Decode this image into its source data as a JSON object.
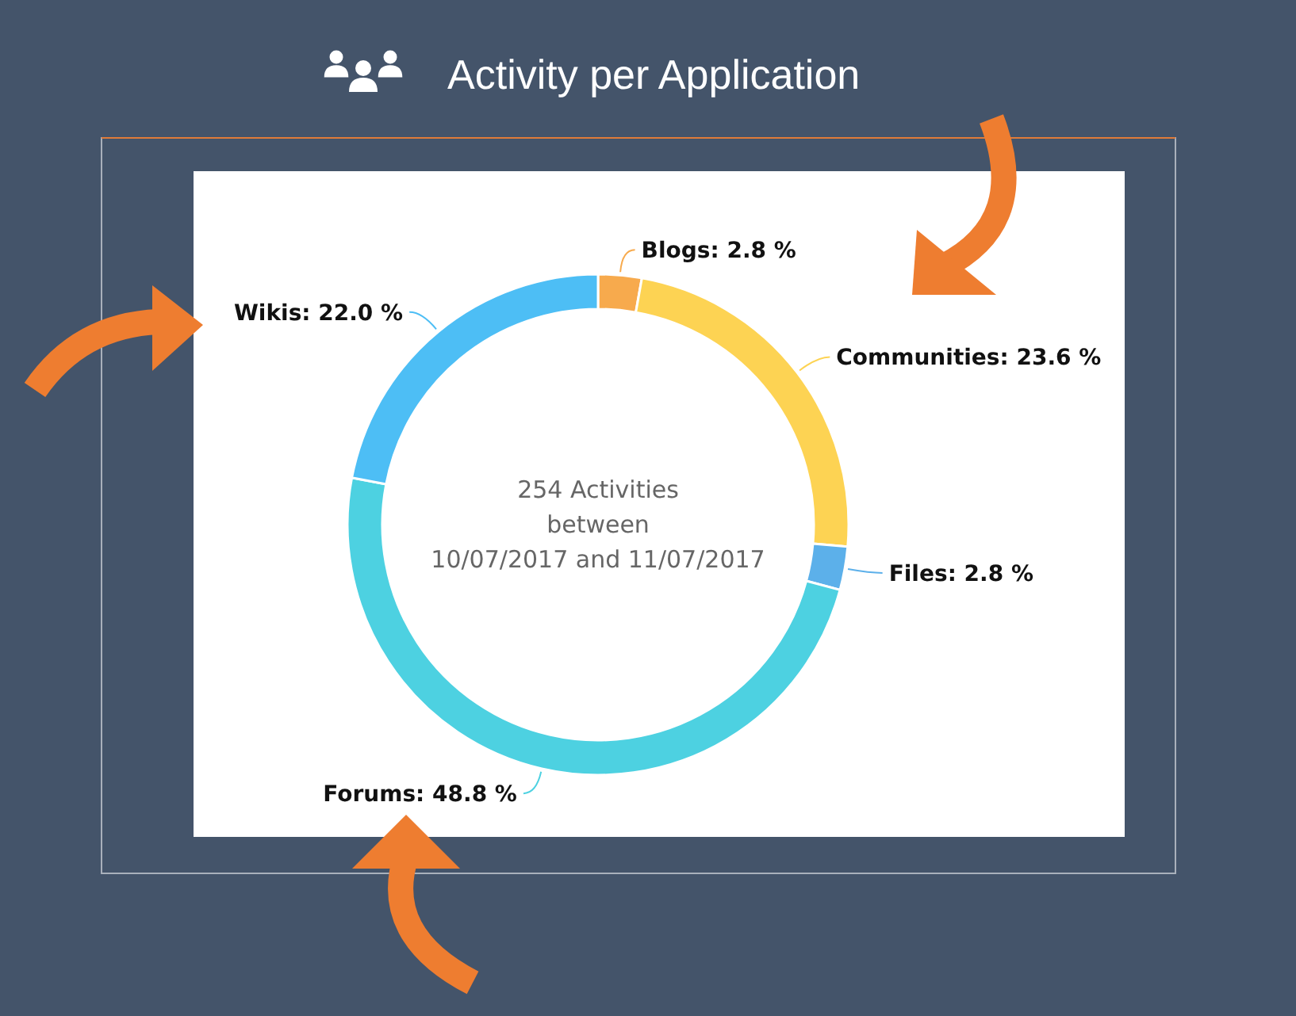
{
  "chart_data": {
    "type": "donut",
    "title": "Activity per Application",
    "categories": [
      "Blogs",
      "Communities",
      "Files",
      "Forums",
      "Wikis"
    ],
    "values": [
      2.8,
      23.6,
      2.8,
      48.8,
      22.0
    ],
    "colors": [
      "#f7aa4d",
      "#fdd353",
      "#5cb0ea",
      "#4dd1e1",
      "#4dbef5"
    ],
    "value_labels": [
      ": 2.8 %",
      ": 23.6 %",
      ": 2.8 %",
      ": 48.8 %",
      ": 22.0 %"
    ],
    "annotations": [
      "254 Activities",
      "between",
      "10/07/2017 and 11/07/2017"
    ]
  }
}
